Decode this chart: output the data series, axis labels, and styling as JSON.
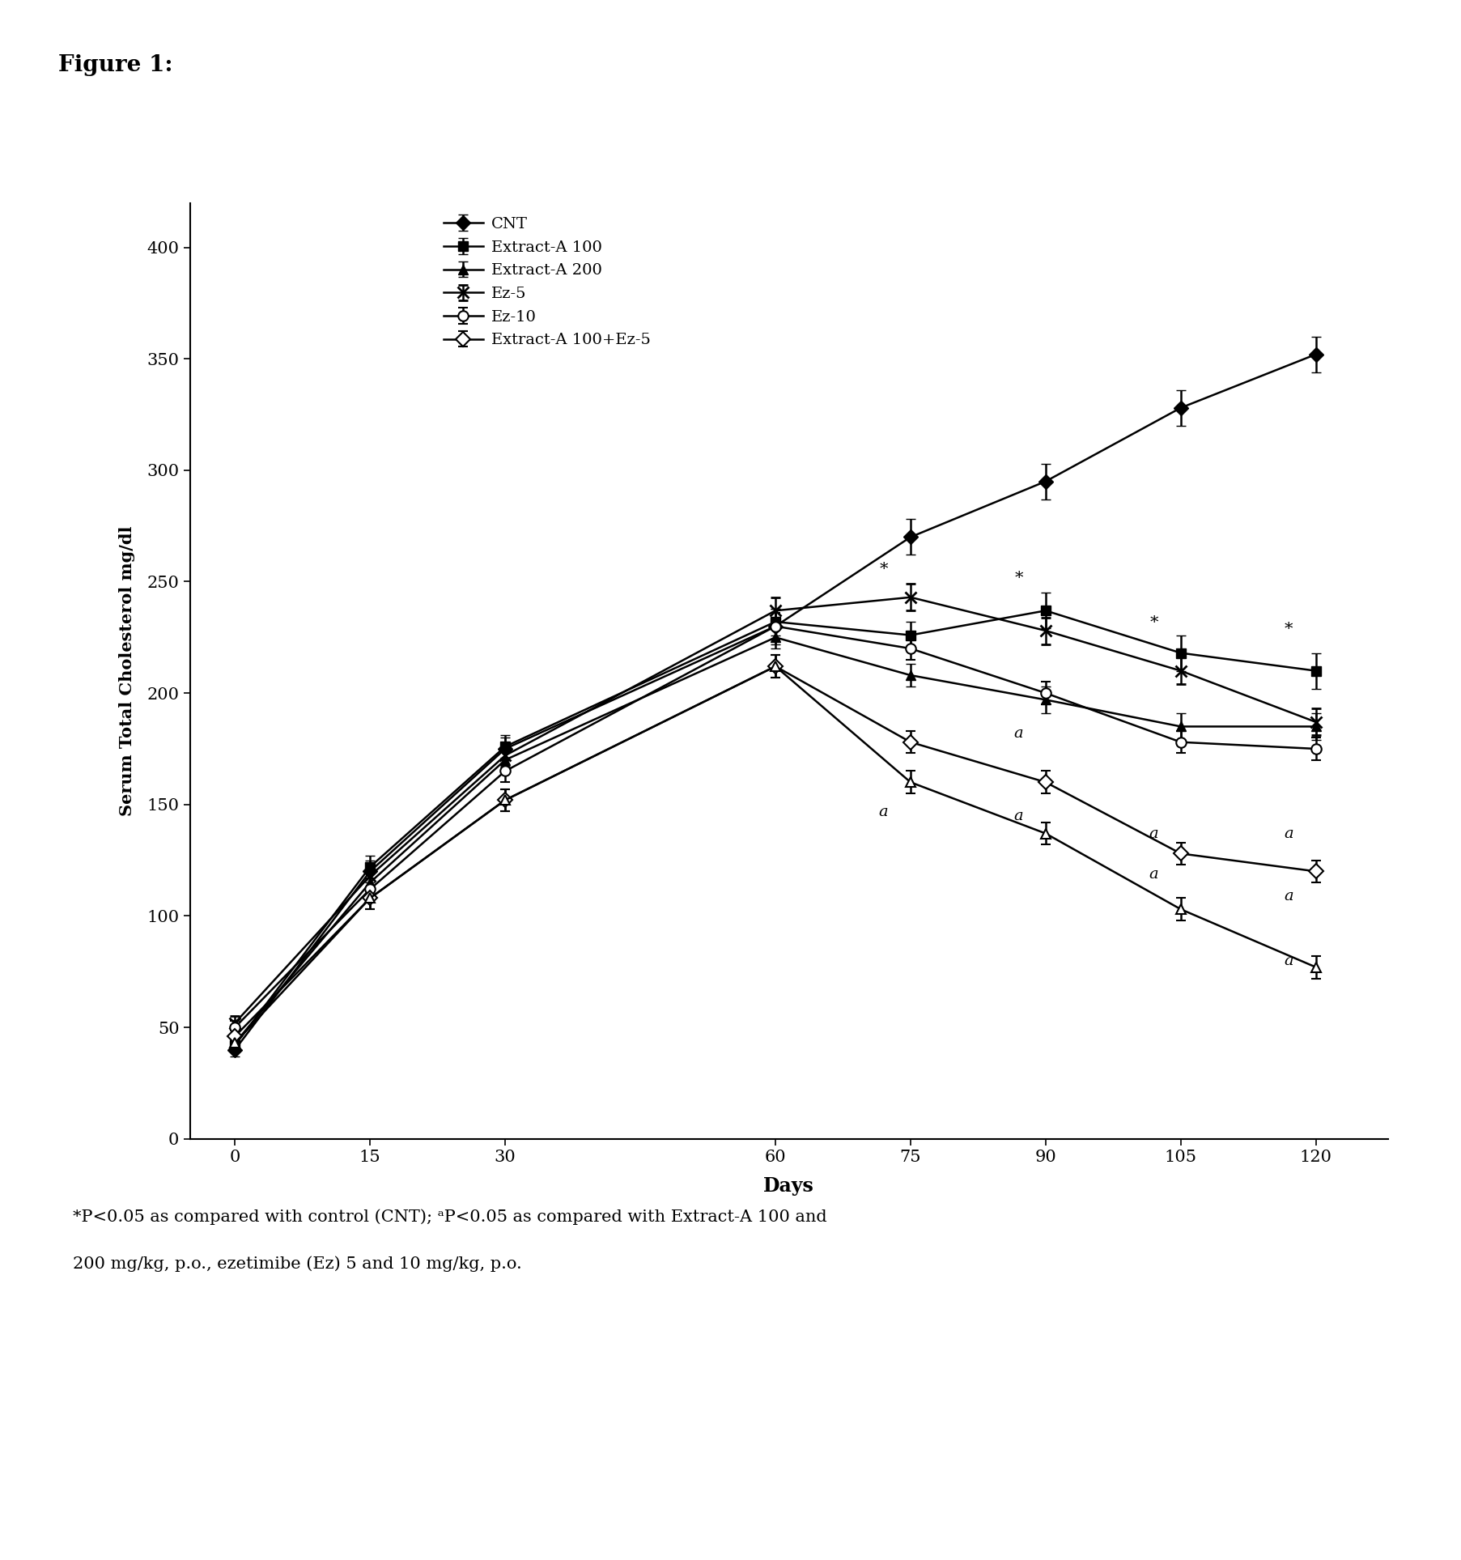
{
  "title": "Figure 1:",
  "xlabel": "Days",
  "ylabel": "Serum Total Cholesterol mg/dl",
  "x_values": [
    0,
    15,
    30,
    60,
    75,
    90,
    105,
    120
  ],
  "series": [
    {
      "label": "CNT",
      "y": [
        40,
        120,
        175,
        230,
        270,
        295,
        328,
        352
      ],
      "yerr": [
        3,
        5,
        5,
        8,
        8,
        8,
        8,
        8
      ],
      "marker": "D",
      "linestyle": "-",
      "fillstyle": "full"
    },
    {
      "label": "Extract-A 100",
      "y": [
        42,
        122,
        176,
        232,
        226,
        237,
        218,
        210
      ],
      "yerr": [
        3,
        5,
        5,
        6,
        6,
        8,
        8,
        8
      ],
      "marker": "s",
      "linestyle": "-",
      "fillstyle": "full"
    },
    {
      "label": "Extract-A 200",
      "y": [
        43,
        115,
        170,
        225,
        208,
        197,
        185,
        185
      ],
      "yerr": [
        3,
        5,
        5,
        5,
        5,
        6,
        6,
        6
      ],
      "marker": "^",
      "linestyle": "-",
      "fillstyle": "full"
    },
    {
      "label": "Ez-5",
      "y": [
        52,
        118,
        172,
        237,
        243,
        228,
        210,
        187
      ],
      "yerr": [
        3,
        5,
        5,
        6,
        6,
        6,
        6,
        6
      ],
      "marker": "x",
      "linestyle": "-",
      "fillstyle": "full"
    },
    {
      "label": "Ez-10",
      "y": [
        50,
        112,
        165,
        230,
        220,
        200,
        178,
        175
      ],
      "yerr": [
        3,
        5,
        5,
        6,
        5,
        5,
        5,
        5
      ],
      "marker": "o",
      "linestyle": "-",
      "fillstyle": "none"
    },
    {
      "label": "Extract-A 100+Ez-5",
      "y": [
        46,
        108,
        152,
        212,
        178,
        160,
        128,
        120
      ],
      "yerr": [
        3,
        5,
        5,
        5,
        5,
        5,
        5,
        5
      ],
      "marker": "D",
      "linestyle": "-",
      "fillstyle": "none"
    }
  ],
  "extra_open_triangle": {
    "y": [
      43,
      108,
      152,
      212,
      160,
      137,
      103,
      77
    ],
    "yerr": [
      3,
      5,
      5,
      5,
      5,
      5,
      5,
      5
    ]
  },
  "ylim": [
    0,
    420
  ],
  "yticks": [
    0,
    50,
    100,
    150,
    200,
    250,
    300,
    350,
    400
  ],
  "xticks": [
    0,
    15,
    30,
    60,
    75,
    90,
    105,
    120
  ],
  "footer_line1": "*P<0.05 as compared with control (CNT); ᵃP<0.05 as compared with Extract-A 100 and",
  "footer_line2": "200 mg/kg, p.o., ezetimibe (Ez) 5 and 10 mg/kg, p.o.",
  "background_color": "#ffffff"
}
